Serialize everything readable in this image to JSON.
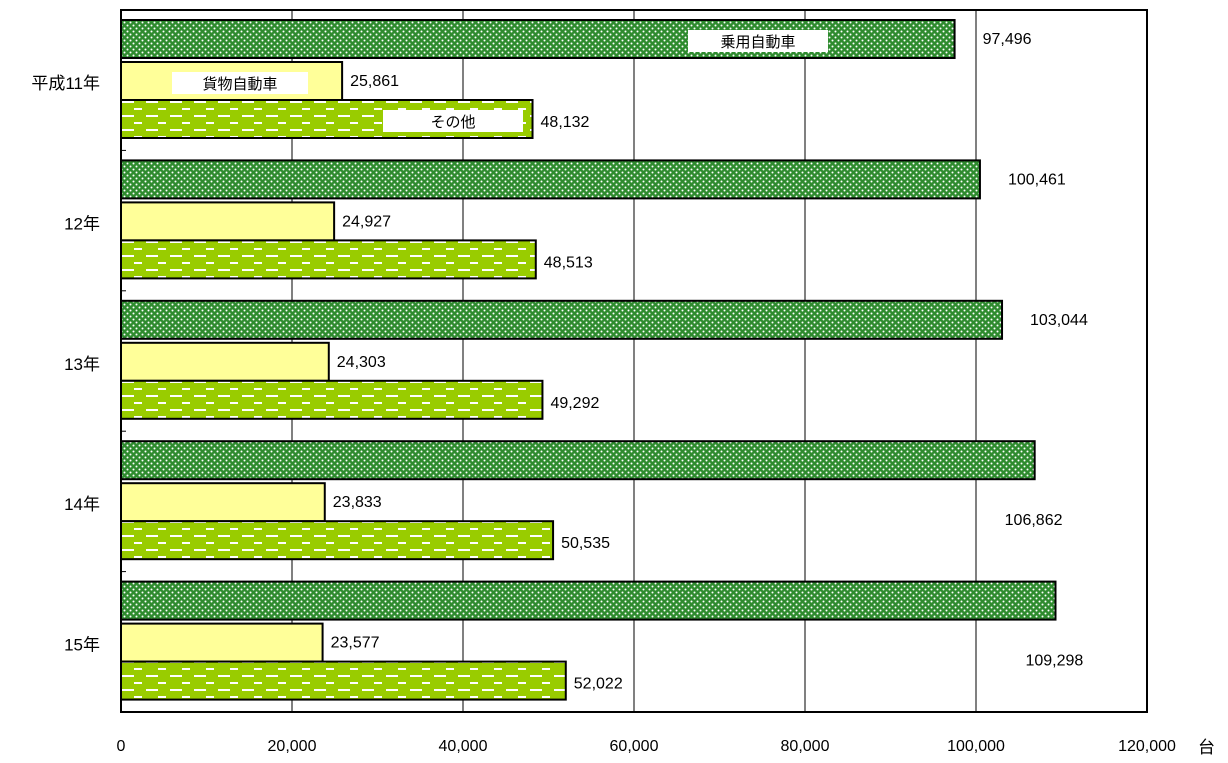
{
  "chart_data": {
    "type": "bar",
    "orientation": "horizontal",
    "categories": [
      "平成11年",
      "12年",
      "13年",
      "14年",
      "15年"
    ],
    "series": [
      {
        "name": "乗用自動車",
        "values": [
          97496,
          100461,
          103044,
          106862,
          109298
        ],
        "color": "#2e8b2e",
        "pattern": "dots"
      },
      {
        "name": "貨物自動車",
        "values": [
          25861,
          24927,
          24303,
          23833,
          23577
        ],
        "color": "#ffff99",
        "pattern": "solid"
      },
      {
        "name": "その他",
        "values": [
          48132,
          48513,
          49292,
          50535,
          52022
        ],
        "color": "#99cc00",
        "pattern": "dashes"
      }
    ],
    "value_labels": [
      [
        "97,496",
        "100,461",
        "103,044",
        "106,862",
        "109,298"
      ],
      [
        "25,861",
        "24,927",
        "24,303",
        "23,833",
        "23,577"
      ],
      [
        "48,132",
        "48,513",
        "49,292",
        "50,535",
        "52,022"
      ]
    ],
    "xlim": [
      0,
      120000
    ],
    "x_ticks": [
      0,
      20000,
      40000,
      60000,
      80000,
      100000,
      120000
    ],
    "x_tick_labels": [
      "0",
      "20,000",
      "40,000",
      "60,000",
      "80,000",
      "100,000",
      "120,000"
    ],
    "x_unit": "台",
    "grid": "vertical",
    "legend": "inline labels on first category bars"
  }
}
